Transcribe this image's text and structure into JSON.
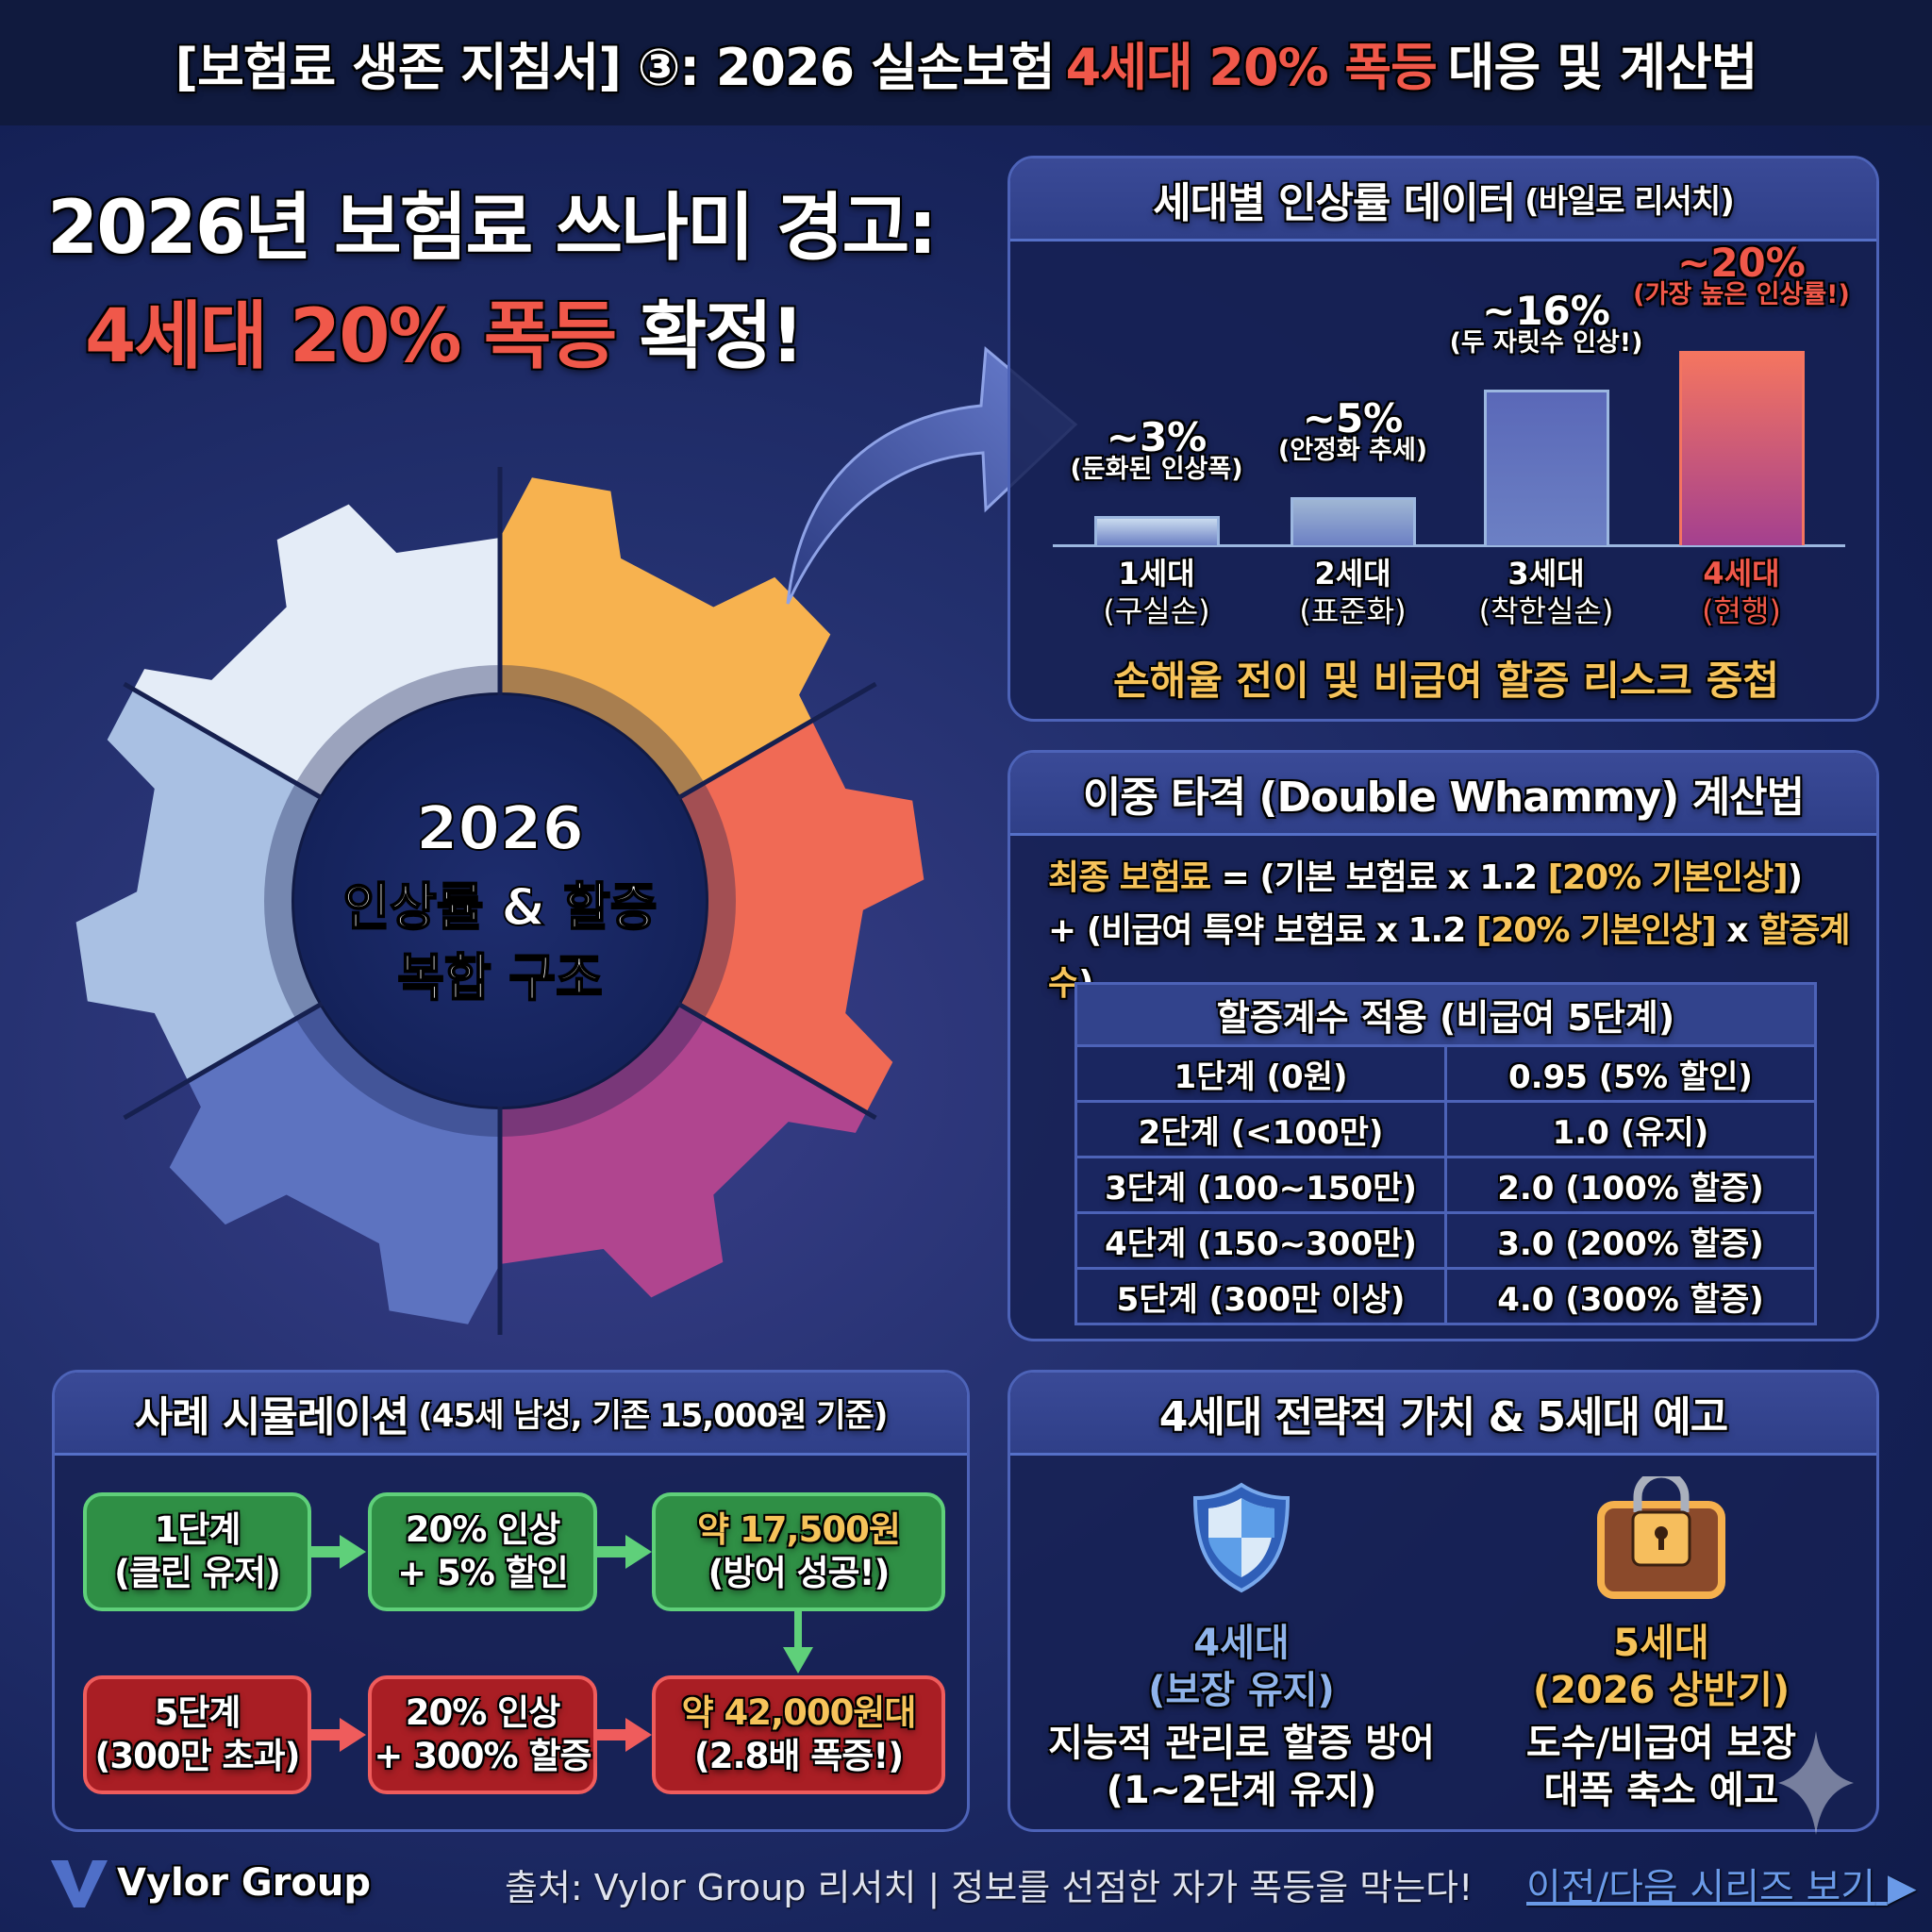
{
  "header": {
    "title_pre": "[보험료 생존 지침서] ③: 2026 실손보험 ",
    "title_hl": "4세대 20% 폭등",
    "title_post": " 대응 및 계산법"
  },
  "headline": {
    "line1": "2026년 보험료 쓰나미 경고:",
    "line2_hl": "4세대 20% 폭등",
    "line2_post": " 확정!"
  },
  "gear": {
    "line1": "2026",
    "line2": "인상률 & 할증",
    "line3": "복합 구조",
    "sector_colors": [
      "#f7b24f",
      "#f06a55",
      "#b0458f",
      "#5d73c0",
      "#a9c0e3",
      "#e4ecf7"
    ]
  },
  "chart_panel": {
    "title": "세대별 인상률 데이터",
    "title_note": "(바일로 리서치)",
    "footnote": "손해율 전이 및 비급여 할증 리스크 중첩"
  },
  "chart_data": {
    "type": "bar",
    "categories": [
      "1세대",
      "2세대",
      "3세대",
      "4세대"
    ],
    "subcategories": [
      "(구실손)",
      "(표준화)",
      "(착한실손)",
      "(현행)"
    ],
    "values": [
      3,
      5,
      16,
      20
    ],
    "value_labels": [
      "~3%",
      "~5%",
      "~16%",
      "~20%"
    ],
    "notes": [
      "(둔화된 인상폭)",
      "(안정화 추세)",
      "(두 자릿수 인상!)",
      "(가장 높은 인상률!)"
    ],
    "colors": [
      "#c9dbef",
      "#9fb6d4",
      "#5a68b8",
      "#f06a55"
    ],
    "ylabel": "",
    "xlabel": ""
  },
  "formula_panel": {
    "title": "이중 타격 (Double Whammy) 계산법",
    "line1": {
      "a": "최종 보험료",
      "b": " = (기본 보험료 x 1.2 ",
      "c": "[20% 기본인상]",
      "d": ")"
    },
    "line2": {
      "a": "+ (비급여 특약 보험료 x 1.2 ",
      "b": "[20% 기본인상]",
      "c": " x ",
      "d": "할증계수",
      "e": ")"
    },
    "table": {
      "header": "할증계수 적용 (비급여 5단계)",
      "rows": [
        [
          "1단계 (0원)",
          "0.95 (5% 할인)"
        ],
        [
          "2단계 (<100만)",
          "1.0 (유지)"
        ],
        [
          "3단계 (100~150만)",
          "2.0 (100% 할증)"
        ],
        [
          "4단계 (150~300만)",
          "3.0 (200% 할증)"
        ],
        [
          "5단계 (300만 이상)",
          "4.0 (300% 할증)"
        ]
      ]
    }
  },
  "sim_panel": {
    "title": "사례 시뮬레이션",
    "title_note": "(45세 남성, 기존 15,000원 기준)",
    "good": [
      [
        "1단계",
        "(클린 유저)"
      ],
      [
        "20% 인상",
        "+ 5% 할인"
      ],
      [
        "약 17,500원",
        "(방어 성공!)"
      ]
    ],
    "bad": [
      [
        "5단계",
        "(300만 초과)"
      ],
      [
        "20% 인상",
        "+ 300% 할증"
      ],
      [
        "약 42,000원대",
        "(2.8배 폭증!)"
      ]
    ]
  },
  "strategy_panel": {
    "title": "4세대 전략적 가치 & 5세대 예고",
    "left": {
      "icon": "shield-icon",
      "t1": "4세대",
      "t2": "(보장 유지)",
      "d1": "지능적 관리로 할증 방어",
      "d2": "(1~2단계 유지)"
    },
    "right": {
      "icon": "lock-chest-icon",
      "t1": "5세대",
      "t2": "(2026 상반기)",
      "d1": "도수/비급여 보장",
      "d2": "대폭 축소 예고"
    }
  },
  "footer": {
    "logo": "Vylor Group",
    "source": "출처: Vylor Group 리서치 | 정보를 선점한 자가 폭등을 막는다!",
    "link": "이전/다음 시리즈 보기"
  }
}
